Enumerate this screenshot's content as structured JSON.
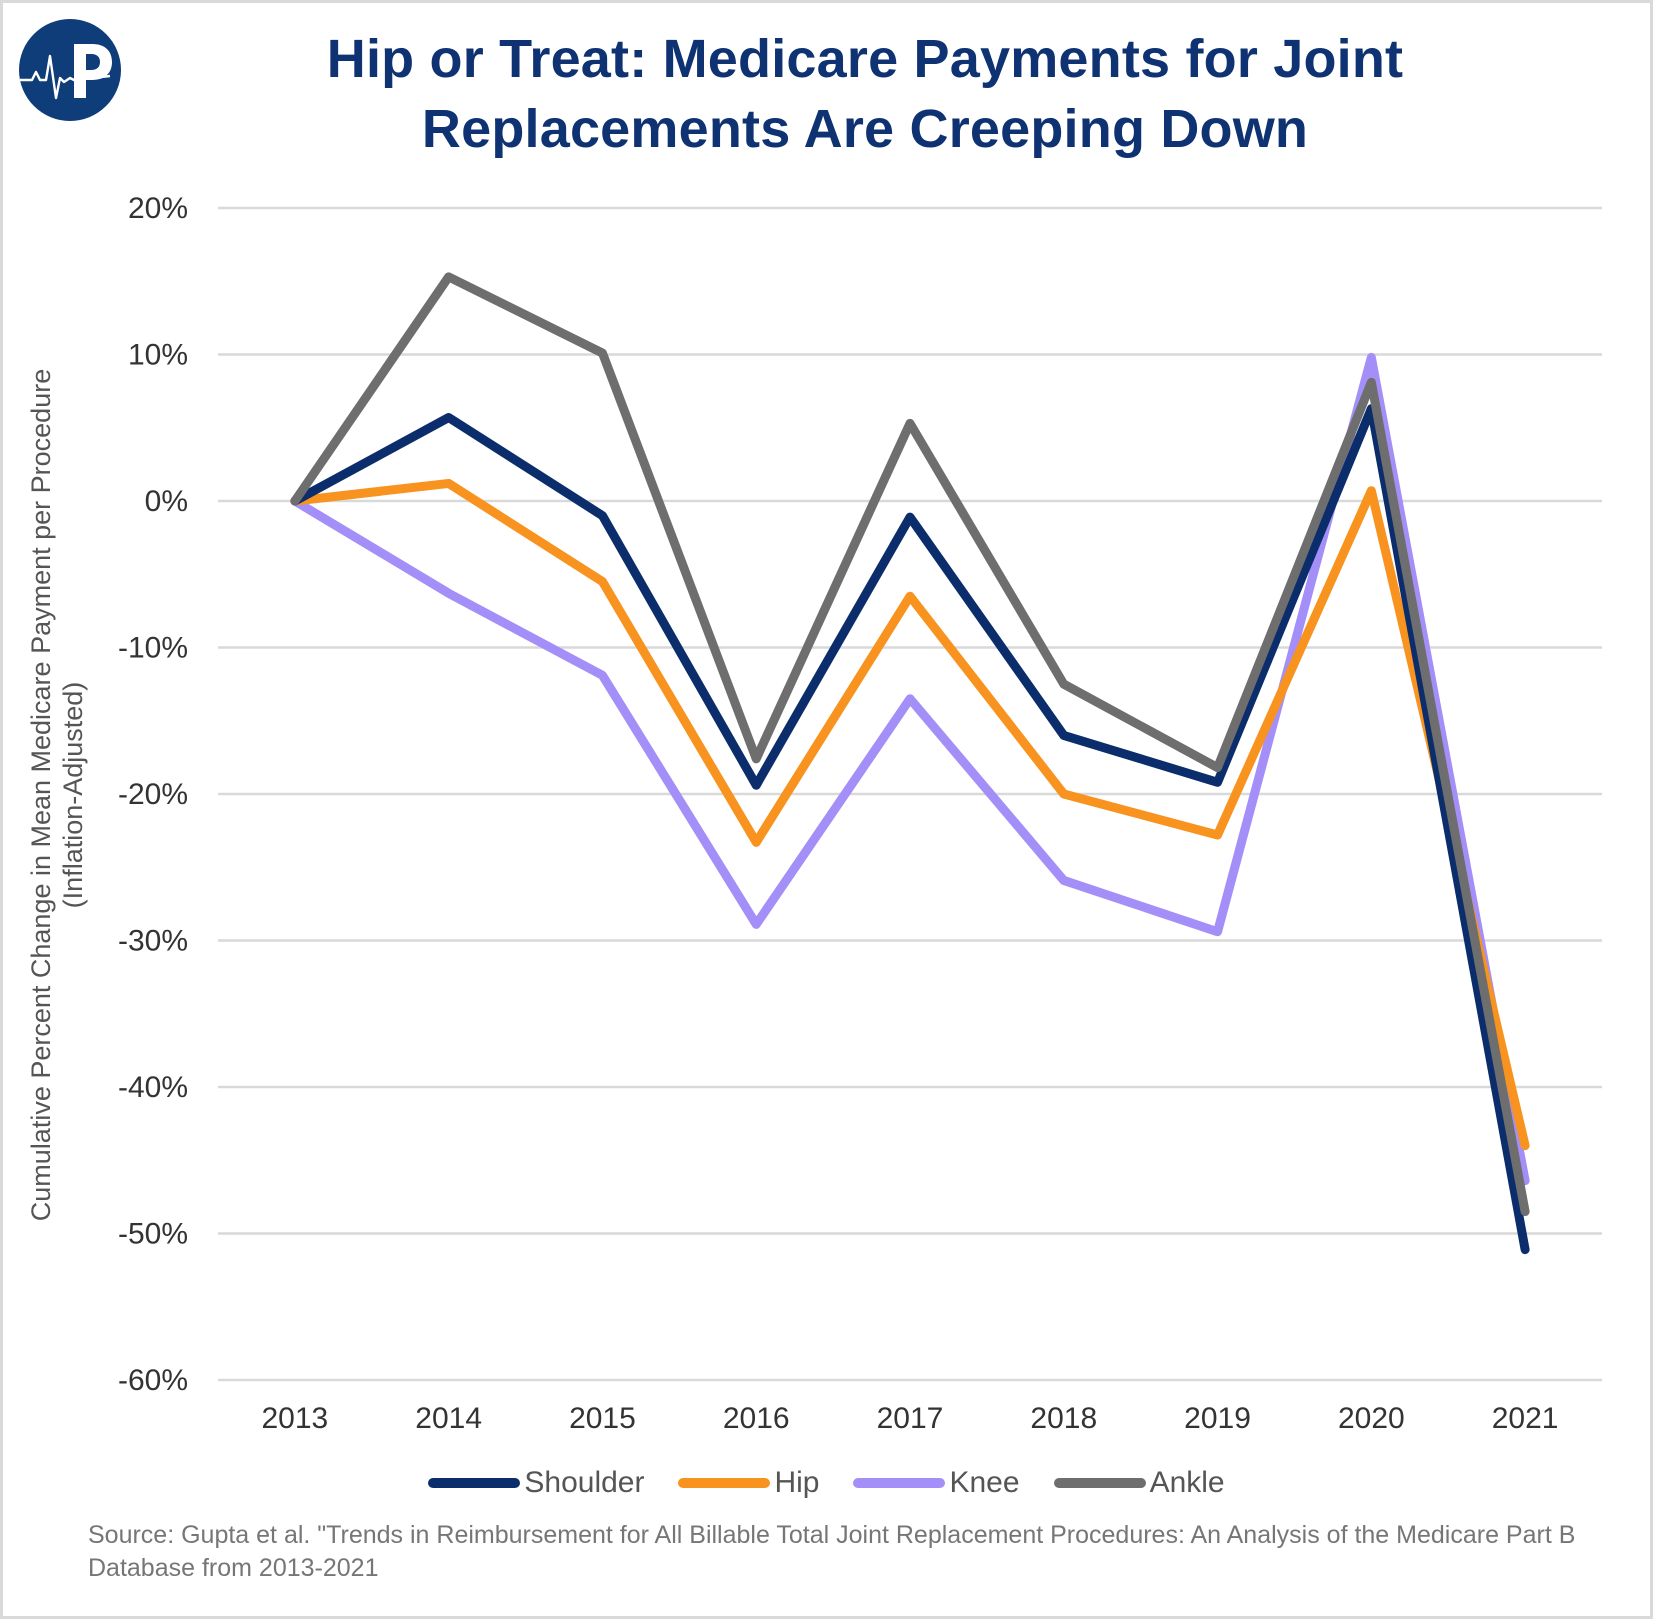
{
  "logo": {
    "icon": "heartbeat-p-logo-icon",
    "letter": "P",
    "color": "#0f3d7a"
  },
  "title": {
    "line1": "Hip or Treat: Medicare Payments for Joint",
    "line2": "Replacements Are Creeping Down"
  },
  "source": "Source: Gupta et al. \"Trends in Reimbursement for All Billable Total Joint Replacement Procedures: An Analysis of the Medicare Part B Database from 2013-2021",
  "chart_data": {
    "type": "line",
    "title": "Hip or Treat: Medicare Payments for Joint Replacements Are Creeping Down",
    "xlabel": "",
    "ylabel": "Cumulative Percent Change in Mean Medicare Payment per Procedure (Inflation-Adjusted)",
    "ylabel_lines": [
      "Cumulative Percent Change in Mean Medicare Payment per Procedure",
      "(Inflation-Adjusted)"
    ],
    "categories": [
      "2013",
      "2014",
      "2015",
      "2016",
      "2017",
      "2018",
      "2019",
      "2020",
      "2021"
    ],
    "ylim": [
      -60,
      20
    ],
    "yticks": [
      20,
      10,
      0,
      -10,
      -20,
      -30,
      -40,
      -50,
      -60
    ],
    "ytick_labels": [
      "20%",
      "10%",
      "0%",
      "-10%",
      "-20%",
      "-30%",
      "-40%",
      "-50%",
      "-60%"
    ],
    "y_unit": "%",
    "grid": true,
    "legend_position": "bottom",
    "series": [
      {
        "name": "Shoulder",
        "color": "#0c2d6b",
        "values": [
          0,
          5.7,
          -1.0,
          -19.4,
          -1.1,
          -16.0,
          -19.2,
          6.3,
          -51.1
        ]
      },
      {
        "name": "Hip",
        "color": "#f7931e",
        "values": [
          0,
          1.2,
          -5.5,
          -23.3,
          -6.5,
          -20.0,
          -22.8,
          0.7,
          -44.0
        ]
      },
      {
        "name": "Knee",
        "color": "#a38ff7",
        "values": [
          0,
          -6.3,
          -11.9,
          -28.9,
          -13.5,
          -25.9,
          -29.4,
          9.8,
          -46.4
        ]
      },
      {
        "name": "Ankle",
        "color": "#6e6e6e",
        "values": [
          0,
          15.3,
          10.1,
          -17.6,
          5.3,
          -12.5,
          -18.2,
          8.1,
          -48.5
        ]
      }
    ],
    "draw_order": [
      "Knee",
      "Hip",
      "Shoulder",
      "Ankle"
    ]
  }
}
